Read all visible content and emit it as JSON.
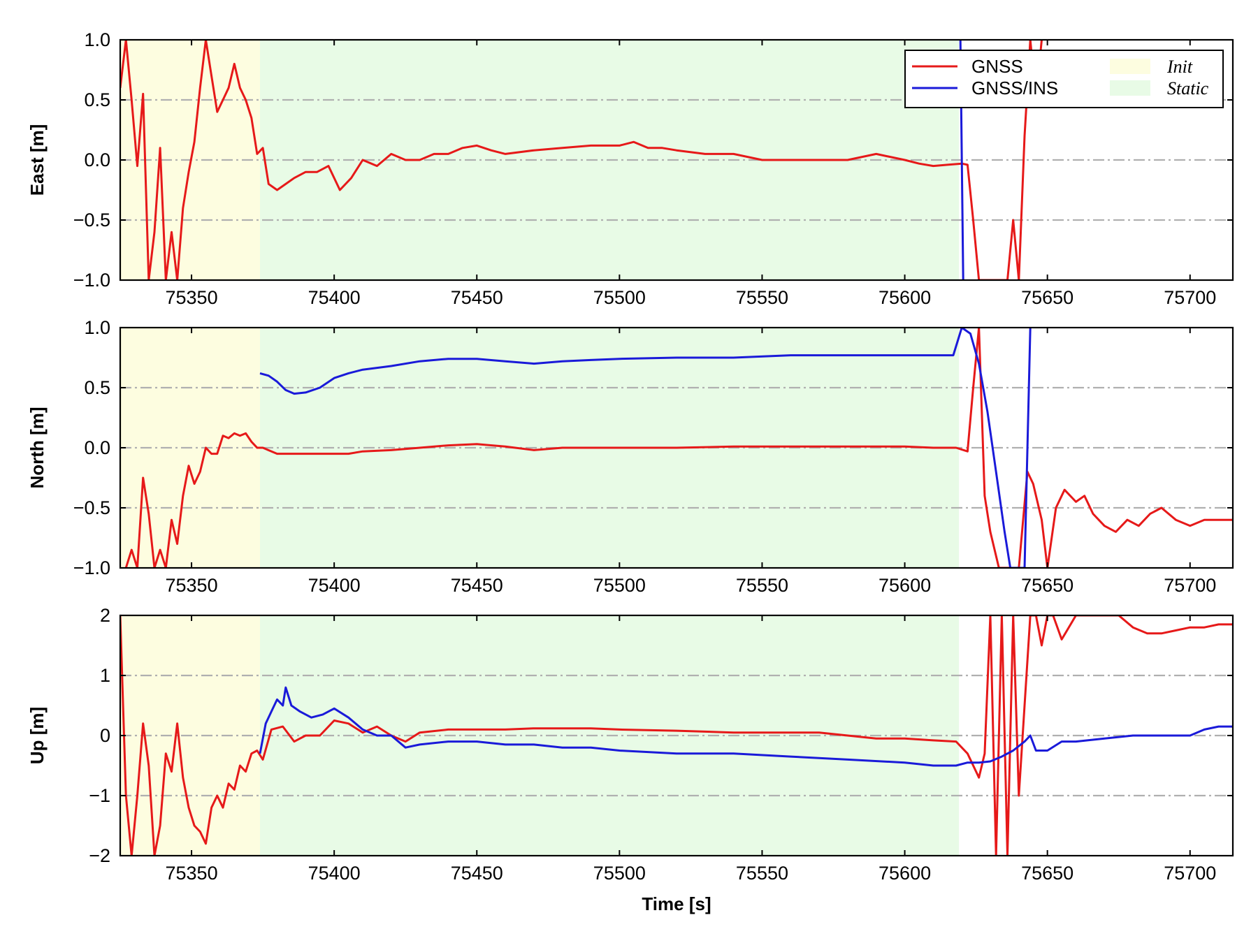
{
  "chart_data": [
    {
      "type": "line",
      "ylabel": "East [m]",
      "xlabel": "",
      "xlim": [
        75325,
        75715
      ],
      "ylim": [
        -1.0,
        1.0
      ],
      "xticks": [
        75350,
        75400,
        75450,
        75500,
        75550,
        75600,
        75650,
        75700
      ],
      "xtick_labels": [
        "75350",
        "75400",
        "75450",
        "75500",
        "75550",
        "75600",
        "75650",
        "75700"
      ],
      "yticks": [
        -1.0,
        -0.5,
        0.0,
        0.5,
        1.0
      ],
      "ytick_labels": [
        "−1.0",
        "−0.5",
        "0.0",
        "0.5",
        "1.0"
      ],
      "grid": "dash-dot horizontal",
      "regions": [
        {
          "name": "Init",
          "x": [
            75325,
            75374
          ],
          "color": "#fdfde0"
        },
        {
          "name": "Static",
          "x": [
            75374,
            75619
          ],
          "color": "#e8fbe6"
        }
      ],
      "series": [
        {
          "name": "GNSS",
          "color": "#e61919",
          "x": [
            75325,
            75327,
            75329,
            75331,
            75333,
            75335,
            75337,
            75339,
            75341,
            75343,
            75345,
            75347,
            75349,
            75351,
            75353,
            75355,
            75357,
            75359,
            75361,
            75363,
            75365,
            75367,
            75369,
            75371,
            75373,
            75375,
            75377,
            75380,
            75383,
            75386,
            75390,
            75394,
            75398,
            75402,
            75406,
            75410,
            75415,
            75420,
            75425,
            75430,
            75435,
            75440,
            75445,
            75450,
            75455,
            75460,
            75470,
            75480,
            75490,
            75500,
            75505,
            75510,
            75515,
            75520,
            75530,
            75540,
            75550,
            75560,
            75570,
            75580,
            75590,
            75600,
            75605,
            75610,
            75615,
            75620,
            75622,
            75624,
            75626,
            75628,
            75630,
            75633,
            75636,
            75638,
            75640,
            75642,
            75644,
            75646,
            75648
          ],
          "y": [
            0.6,
            1.0,
            0.5,
            -0.05,
            0.55,
            -1.0,
            -0.6,
            0.1,
            -1.0,
            -0.6,
            -1.0,
            -0.4,
            -0.1,
            0.15,
            0.6,
            1.0,
            0.7,
            0.4,
            0.5,
            0.6,
            0.8,
            0.6,
            0.5,
            0.35,
            0.05,
            0.1,
            -0.2,
            -0.25,
            -0.2,
            -0.15,
            -0.1,
            -0.1,
            -0.05,
            -0.25,
            -0.15,
            0.0,
            -0.05,
            0.05,
            0.0,
            0.0,
            0.05,
            0.05,
            0.1,
            0.12,
            0.08,
            0.05,
            0.08,
            0.1,
            0.12,
            0.12,
            0.15,
            0.1,
            0.1,
            0.08,
            0.05,
            0.05,
            0.0,
            0.0,
            0.0,
            0.0,
            0.05,
            0.0,
            -0.03,
            -0.05,
            -0.04,
            -0.03,
            -0.04,
            -0.5,
            -1.0,
            -1.0,
            -1.0,
            -1.0,
            -1.0,
            -0.5,
            -1.0,
            0.2,
            1.0,
            0.5,
            1.0
          ]
        },
        {
          "name": "GNSS/INS",
          "color": "#1a1ad9",
          "x": [
            75619.5,
            75620.5
          ],
          "y": [
            1.0,
            -1.0
          ]
        }
      ]
    },
    {
      "type": "line",
      "ylabel": "North [m]",
      "xlabel": "",
      "xlim": [
        75325,
        75715
      ],
      "ylim": [
        -1.0,
        1.0
      ],
      "xticks": [
        75350,
        75400,
        75450,
        75500,
        75550,
        75600,
        75650,
        75700
      ],
      "xtick_labels": [
        "75350",
        "75400",
        "75450",
        "75500",
        "75550",
        "75600",
        "75650",
        "75700"
      ],
      "yticks": [
        -1.0,
        -0.5,
        0.0,
        0.5,
        1.0
      ],
      "ytick_labels": [
        "−1.0",
        "−0.5",
        "0.0",
        "0.5",
        "1.0"
      ],
      "grid": "dash-dot horizontal",
      "regions": [
        {
          "name": "Init",
          "x": [
            75325,
            75374
          ],
          "color": "#fdfde0"
        },
        {
          "name": "Static",
          "x": [
            75374,
            75619
          ],
          "color": "#e8fbe6"
        }
      ],
      "series": [
        {
          "name": "GNSS",
          "color": "#e61919",
          "x": [
            75327,
            75329,
            75331,
            75333,
            75335,
            75337,
            75339,
            75341,
            75343,
            75345,
            75347,
            75349,
            75351,
            75353,
            75355,
            75357,
            75359,
            75361,
            75363,
            75365,
            75367,
            75369,
            75371,
            75373,
            75375,
            75380,
            75385,
            75390,
            75395,
            75400,
            75405,
            75410,
            75420,
            75430,
            75440,
            75450,
            75460,
            75470,
            75480,
            75490,
            75500,
            75520,
            75540,
            75560,
            75580,
            75600,
            75610,
            75618,
            75622,
            75624,
            75626,
            75628,
            75630,
            75633,
            75636,
            75640,
            75643,
            75645,
            75648,
            75650,
            75653,
            75656,
            75660,
            75663,
            75666,
            75670,
            75674,
            75678,
            75682,
            75686,
            75690,
            75695,
            75700,
            75705,
            75710,
            75715
          ],
          "y": [
            -1.0,
            -0.85,
            -1.0,
            -0.25,
            -0.55,
            -1.0,
            -0.85,
            -1.0,
            -0.6,
            -0.8,
            -0.4,
            -0.15,
            -0.3,
            -0.2,
            0.0,
            -0.05,
            -0.05,
            0.1,
            0.08,
            0.12,
            0.1,
            0.12,
            0.05,
            0.0,
            0.0,
            -0.05,
            -0.05,
            -0.05,
            -0.05,
            -0.05,
            -0.05,
            -0.03,
            -0.02,
            0.0,
            0.02,
            0.03,
            0.01,
            -0.02,
            0.0,
            0.0,
            0.0,
            0.0,
            0.01,
            0.01,
            0.01,
            0.01,
            0.0,
            0.0,
            -0.03,
            0.5,
            1.0,
            -0.4,
            -0.7,
            -1.0,
            -1.0,
            -1.0,
            -0.2,
            -0.3,
            -0.6,
            -1.0,
            -0.5,
            -0.35,
            -0.45,
            -0.4,
            -0.55,
            -0.65,
            -0.7,
            -0.6,
            -0.65,
            -0.55,
            -0.5,
            -0.6,
            -0.65,
            -0.6,
            -0.6,
            -0.6
          ]
        },
        {
          "name": "GNSS/INS",
          "color": "#1a1ad9",
          "x": [
            75374,
            75377,
            75380,
            75383,
            75386,
            75390,
            75395,
            75400,
            75405,
            75410,
            75420,
            75430,
            75440,
            75450,
            75460,
            75470,
            75480,
            75490,
            75500,
            75520,
            75540,
            75560,
            75580,
            75600,
            75610,
            75617,
            75620,
            75623,
            75626,
            75629,
            75632,
            75635,
            75637,
            75642,
            75643,
            75644
          ],
          "y": [
            0.62,
            0.6,
            0.55,
            0.48,
            0.45,
            0.46,
            0.5,
            0.58,
            0.62,
            0.65,
            0.68,
            0.72,
            0.74,
            0.74,
            0.72,
            0.7,
            0.72,
            0.73,
            0.74,
            0.75,
            0.75,
            0.77,
            0.77,
            0.77,
            0.77,
            0.77,
            1.0,
            0.95,
            0.7,
            0.3,
            -0.2,
            -0.7,
            -1.0,
            -1.0,
            0.0,
            1.0
          ]
        }
      ]
    },
    {
      "type": "line",
      "ylabel": "Up [m]",
      "xlabel": "Time [s]",
      "xlim": [
        75325,
        75715
      ],
      "ylim": [
        -2,
        2
      ],
      "xticks": [
        75350,
        75400,
        75450,
        75500,
        75550,
        75600,
        75650,
        75700
      ],
      "xtick_labels": [
        "75350",
        "75400",
        "75450",
        "75500",
        "75550",
        "75600",
        "75650",
        "75700"
      ],
      "yticks": [
        -2,
        -1,
        0,
        1,
        2
      ],
      "ytick_labels": [
        "−2",
        "−1",
        "0",
        "1",
        "2"
      ],
      "grid": "dash-dot horizontal",
      "regions": [
        {
          "name": "Init",
          "x": [
            75325,
            75374
          ],
          "color": "#fdfde0"
        },
        {
          "name": "Static",
          "x": [
            75374,
            75619
          ],
          "color": "#e8fbe6"
        }
      ],
      "series": [
        {
          "name": "GNSS",
          "color": "#e61919",
          "x": [
            75325,
            75327,
            75329,
            75331,
            75333,
            75335,
            75337,
            75339,
            75341,
            75343,
            75345,
            75347,
            75349,
            75351,
            75353,
            75355,
            75357,
            75359,
            75361,
            75363,
            75365,
            75367,
            75369,
            75371,
            75373,
            75375,
            75378,
            75382,
            75386,
            75390,
            75395,
            75400,
            75405,
            75410,
            75415,
            75420,
            75425,
            75430,
            75440,
            75450,
            75460,
            75470,
            75480,
            75490,
            75500,
            75520,
            75540,
            75560,
            75570,
            75580,
            75590,
            75600,
            75610,
            75618,
            75622,
            75626,
            75628,
            75630,
            75632,
            75634,
            75636,
            75638,
            75640,
            75642,
            75644,
            75646,
            75648,
            75650,
            75652,
            75655,
            75660,
            75665,
            75670,
            75675,
            75680,
            75685,
            75690,
            75695,
            75700,
            75705,
            75710,
            75715
          ],
          "y": [
            2.0,
            -1.0,
            -2.0,
            -1.0,
            0.2,
            -0.5,
            -2.0,
            -1.5,
            -0.3,
            -0.6,
            0.2,
            -0.7,
            -1.2,
            -1.5,
            -1.6,
            -1.8,
            -1.2,
            -1.0,
            -1.2,
            -0.8,
            -0.9,
            -0.5,
            -0.6,
            -0.3,
            -0.25,
            -0.4,
            0.1,
            0.15,
            -0.1,
            0.0,
            0.0,
            0.25,
            0.2,
            0.05,
            0.15,
            0.0,
            -0.1,
            0.05,
            0.1,
            0.1,
            0.1,
            0.12,
            0.12,
            0.12,
            0.1,
            0.08,
            0.05,
            0.05,
            0.05,
            0.0,
            -0.05,
            -0.05,
            -0.08,
            -0.1,
            -0.3,
            -0.7,
            -0.3,
            2.0,
            -2.0,
            2.0,
            -2.0,
            2.0,
            -1.0,
            0.5,
            2.0,
            2.0,
            1.5,
            2.0,
            2.0,
            1.6,
            2.0,
            2.0,
            2.0,
            2.0,
            1.8,
            1.7,
            1.7,
            1.75,
            1.8,
            1.8,
            1.85,
            1.85
          ]
        },
        {
          "name": "GNSS/INS",
          "color": "#1a1ad9",
          "x": [
            75374,
            75376,
            75378,
            75380,
            75382,
            75383,
            75385,
            75388,
            75392,
            75396,
            75400,
            75405,
            75410,
            75415,
            75420,
            75425,
            75430,
            75440,
            75450,
            75460,
            75470,
            75480,
            75490,
            75500,
            75520,
            75540,
            75560,
            75580,
            75600,
            75610,
            75618,
            75622,
            75626,
            75630,
            75634,
            75638,
            75642,
            75644,
            75646,
            75650,
            75655,
            75660,
            75670,
            75680,
            75690,
            75700,
            75705,
            75710,
            75715
          ],
          "y": [
            -0.3,
            0.2,
            0.4,
            0.6,
            0.5,
            0.8,
            0.5,
            0.4,
            0.3,
            0.35,
            0.45,
            0.3,
            0.1,
            0.0,
            0.0,
            -0.2,
            -0.15,
            -0.1,
            -0.1,
            -0.15,
            -0.15,
            -0.2,
            -0.2,
            -0.25,
            -0.3,
            -0.3,
            -0.35,
            -0.4,
            -0.45,
            -0.5,
            -0.5,
            -0.45,
            -0.45,
            -0.43,
            -0.35,
            -0.25,
            -0.1,
            0.0,
            -0.25,
            -0.25,
            -0.1,
            -0.1,
            -0.05,
            0.0,
            0.0,
            0.0,
            0.1,
            0.15,
            0.15
          ]
        }
      ]
    }
  ],
  "legend": {
    "placement": "upper-right of top panel",
    "lines": [
      {
        "label": "GNSS",
        "color": "#e61919"
      },
      {
        "label": "GNSS/INS",
        "color": "#1a1ad9"
      }
    ],
    "patches": [
      {
        "label": "Init",
        "color": "#fdfde0"
      },
      {
        "label": "Static",
        "color": "#e8fbe6"
      }
    ]
  }
}
